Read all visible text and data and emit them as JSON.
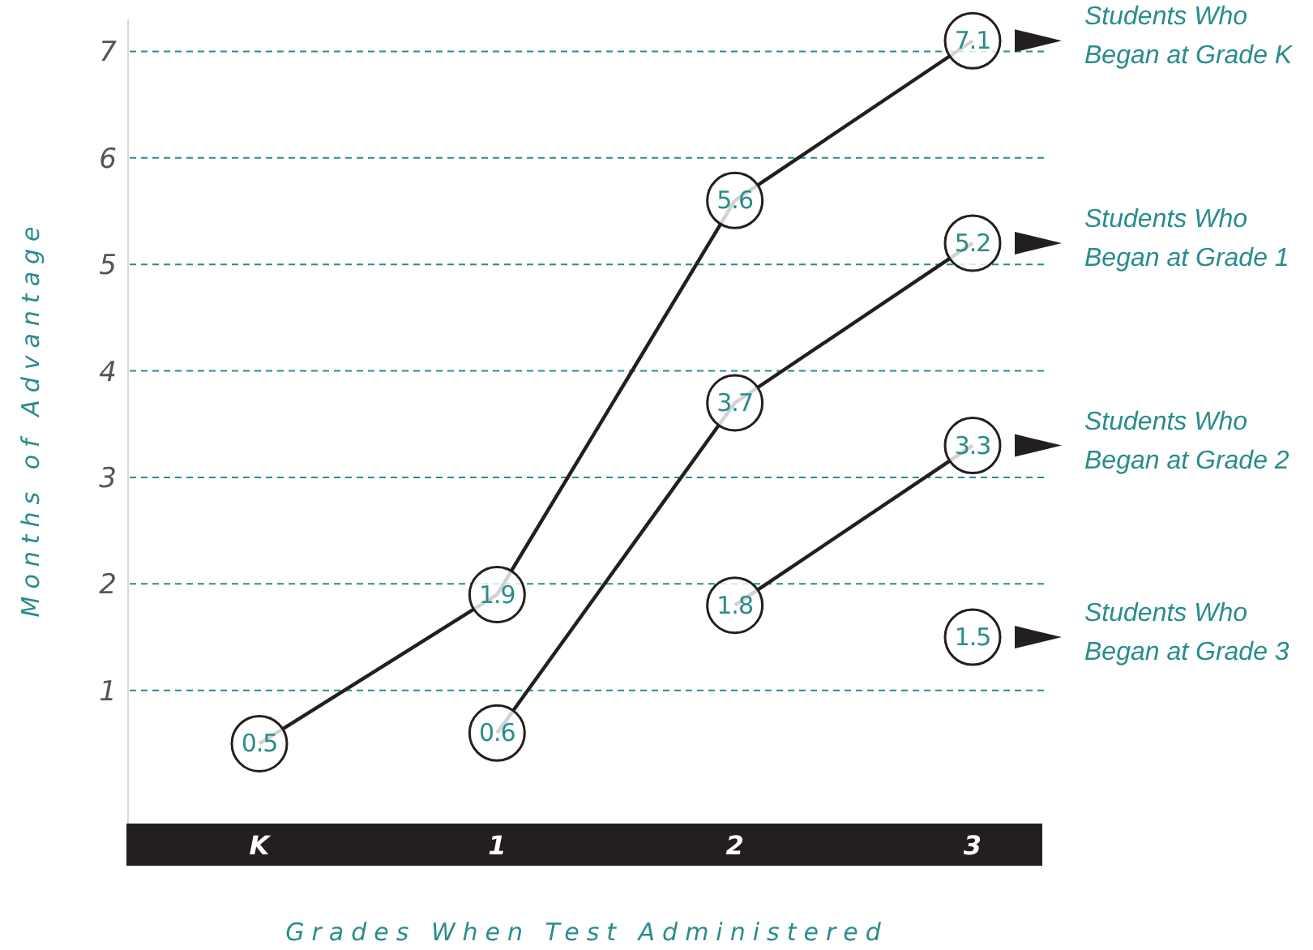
{
  "chart_data": {
    "type": "line",
    "xlabel": "Grades When Test Administered",
    "ylabel": "Months of Advantage",
    "categories": [
      "K",
      "1",
      "2",
      "3"
    ],
    "series": [
      {
        "name": "Students Who Began at Grade K",
        "color": "#231f20",
        "values": [
          0.5,
          1.9,
          5.6,
          7.1
        ]
      },
      {
        "name": "Students Who Began at Grade 1",
        "color": "#231f20",
        "values": [
          null,
          0.6,
          3.7,
          5.2
        ]
      },
      {
        "name": "Students Who Began at Grade 2",
        "color": "#231f20",
        "values": [
          null,
          null,
          1.8,
          3.3
        ]
      },
      {
        "name": "Students Who Began at Grade 3",
        "color": "#231f20",
        "values": [
          null,
          null,
          null,
          1.5
        ]
      }
    ],
    "ylim": [
      -0.25,
      7.3
    ],
    "yticks": [
      1,
      2,
      3,
      4,
      5,
      6,
      7
    ],
    "grid": "y",
    "data_labels": true,
    "marker": "circle",
    "line_style": "solid"
  }
}
